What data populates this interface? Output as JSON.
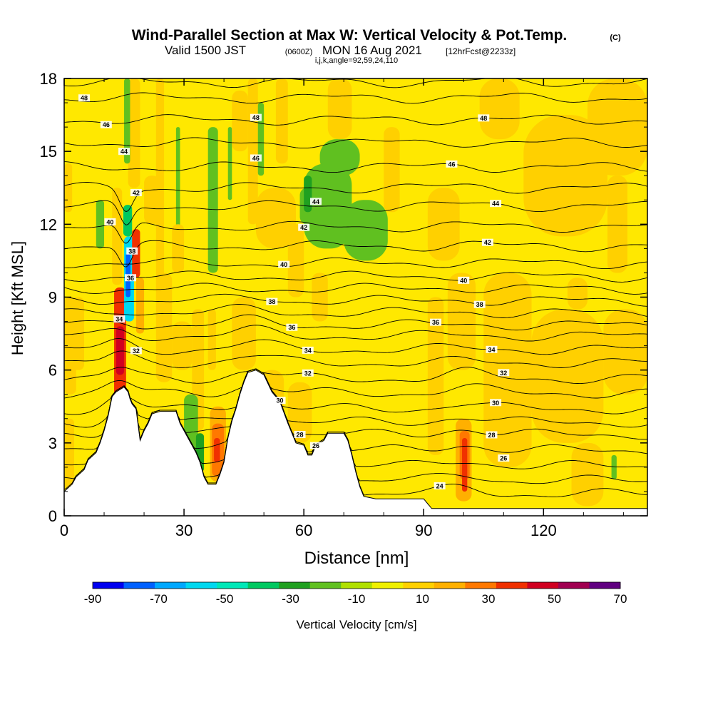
{
  "chart_data": {
    "type": "heatmap",
    "title": {
      "main": "Wind-Parallel Section at Max W: Vertical Velocity & Pot.Temp.",
      "copyright": "(C)",
      "line2_a": "Valid 1500 JST",
      "line2_b": "(0600Z)",
      "line2_c": "MON 16 Aug 2021",
      "line2_d": "[12hrFcst@2233z]",
      "line3": "i,j,k,angle=92,59,24,110"
    },
    "xlabel": "Distance [nm]",
    "ylabel": "Height [Kft MSL]",
    "xlim": [
      0,
      146
    ],
    "ylim": [
      0,
      18
    ],
    "x_ticks": [
      "0",
      "30",
      "60",
      "90",
      "120"
    ],
    "x_tick_values": [
      0,
      30,
      60,
      90,
      120
    ],
    "y_ticks": [
      "0",
      "3",
      "6",
      "9",
      "12",
      "15",
      "18"
    ],
    "y_tick_values": [
      0,
      3,
      6,
      9,
      12,
      15,
      18
    ],
    "colorbar": {
      "label": "Vertical Velocity [cm/s]",
      "tick_labels": [
        "-90",
        "-70",
        "-50",
        "-30",
        "-10",
        "10",
        "30",
        "50",
        "70"
      ],
      "tick_values": [
        -90,
        -70,
        -50,
        -30,
        -10,
        10,
        30,
        50,
        70
      ],
      "bins": [
        -90,
        -80,
        -70,
        -60,
        -50,
        -40,
        -30,
        -20,
        -10,
        0,
        10,
        20,
        30,
        40,
        50,
        60,
        70
      ],
      "colors": [
        "#0000f0",
        "#0060ff",
        "#00a8ff",
        "#00d8f0",
        "#00e8b8",
        "#00c860",
        "#20a020",
        "#60c020",
        "#b0e000",
        "#f0f000",
        "#ffd000",
        "#ffb000",
        "#ff7800",
        "#f03000",
        "#d00020",
        "#a00050",
        "#600080"
      ]
    },
    "background_color": "#ffe800",
    "terrain": [
      [
        0,
        1.0
      ],
      [
        2,
        1.3
      ],
      [
        3,
        1.6
      ],
      [
        5,
        1.9
      ],
      [
        6,
        2.3
      ],
      [
        8,
        2.6
      ],
      [
        9,
        3.0
      ],
      [
        10,
        3.5
      ],
      [
        11,
        4.1
      ],
      [
        12,
        4.9
      ],
      [
        13,
        5.1
      ],
      [
        14,
        5.2
      ],
      [
        15,
        5.3
      ],
      [
        16,
        5.1
      ],
      [
        16.5,
        4.8
      ],
      [
        17,
        4.6
      ],
      [
        18,
        4.4
      ],
      [
        19,
        3.1
      ],
      [
        20,
        3.5
      ],
      [
        21,
        3.8
      ],
      [
        22,
        4.2
      ],
      [
        24,
        4.3
      ],
      [
        26,
        4.3
      ],
      [
        28,
        4.3
      ],
      [
        29,
        3.8
      ],
      [
        30,
        3.5
      ],
      [
        31,
        3.2
      ],
      [
        32,
        2.9
      ],
      [
        33,
        2.6
      ],
      [
        34,
        2.2
      ],
      [
        35,
        1.6
      ],
      [
        36,
        1.3
      ],
      [
        38,
        1.3
      ],
      [
        39,
        1.7
      ],
      [
        40,
        2.2
      ],
      [
        41,
        3.2
      ],
      [
        42,
        3.9
      ],
      [
        43,
        4.4
      ],
      [
        44,
        5.0
      ],
      [
        45,
        5.5
      ],
      [
        46,
        5.9
      ],
      [
        48,
        6.0
      ],
      [
        50,
        5.8
      ],
      [
        52,
        5.1
      ],
      [
        54,
        4.7
      ],
      [
        56,
        3.8
      ],
      [
        57,
        3.4
      ],
      [
        58,
        3.0
      ],
      [
        60,
        2.9
      ],
      [
        61,
        2.5
      ],
      [
        62,
        2.5
      ],
      [
        63,
        2.9
      ],
      [
        64,
        3.0
      ],
      [
        65,
        3.1
      ],
      [
        66,
        3.4
      ],
      [
        68,
        3.4
      ],
      [
        70,
        3.4
      ],
      [
        71,
        3.1
      ],
      [
        72,
        2.5
      ],
      [
        73,
        1.8
      ],
      [
        74,
        1.2
      ],
      [
        75,
        0.8
      ],
      [
        78,
        0.7
      ],
      [
        82,
        0.7
      ],
      [
        86,
        0.7
      ],
      [
        89,
        0.7
      ],
      [
        90,
        0.7
      ],
      [
        91,
        0.5
      ],
      [
        92,
        0.3
      ],
      [
        146,
        0.3
      ]
    ],
    "wind_cells": [
      {
        "x0": 12.5,
        "x1": 15.5,
        "y0": 4.9,
        "y1": 9.4,
        "value": 45
      },
      {
        "x0": 13.0,
        "x1": 15.0,
        "y0": 5.8,
        "y1": 7.8,
        "value": 55
      },
      {
        "x0": 15.0,
        "x1": 17.5,
        "y0": 8.0,
        "y1": 11.5,
        "value": -60
      },
      {
        "x0": 15.4,
        "x1": 16.6,
        "y0": 9.0,
        "y1": 10.8,
        "value": -75
      },
      {
        "x0": 14.8,
        "x1": 17.0,
        "y0": 11.5,
        "y1": 12.8,
        "value": -35
      },
      {
        "x0": 17.0,
        "x1": 19.0,
        "y0": 9.8,
        "y1": 11.8,
        "value": 40
      },
      {
        "x0": 18.0,
        "x1": 20.0,
        "y0": 7.5,
        "y1": 9.8,
        "value": 25
      },
      {
        "x0": 12.0,
        "x1": 14.5,
        "y0": 9.5,
        "y1": 13.5,
        "value": 15
      },
      {
        "x0": 16.0,
        "x1": 19.0,
        "y0": 13.5,
        "y1": 18.0,
        "value": 18
      },
      {
        "x0": 15.0,
        "x1": 16.5,
        "y0": 14.5,
        "y1": 18.0,
        "value": -15
      },
      {
        "x0": 8.0,
        "x1": 10.0,
        "y0": 11.0,
        "y1": 13.0,
        "value": -12
      },
      {
        "x0": 23.0,
        "x1": 25.0,
        "y0": 8.0,
        "y1": 18.0,
        "value": 14
      },
      {
        "x0": 28.0,
        "x1": 29.0,
        "y0": 10.5,
        "y1": 16.0,
        "value": -14
      },
      {
        "x0": 27.0,
        "x1": 30.0,
        "y0": 10.0,
        "y1": 12.0,
        "value": 12
      },
      {
        "x0": 20.0,
        "x1": 24.0,
        "y0": 12.0,
        "y1": 14.0,
        "value": 12
      },
      {
        "x0": 36.0,
        "x1": 38.5,
        "y0": 10.0,
        "y1": 16.0,
        "value": -14
      },
      {
        "x0": 41.0,
        "x1": 42.0,
        "y0": 13.0,
        "y1": 16.0,
        "value": -12
      },
      {
        "x0": 46.0,
        "x1": 48.5,
        "y0": 12.0,
        "y1": 18.0,
        "value": 15
      },
      {
        "x0": 48.5,
        "x1": 50.0,
        "y0": 14.0,
        "y1": 17.0,
        "value": -14
      },
      {
        "x0": 42.0,
        "x1": 46.0,
        "y0": 15.0,
        "y1": 17.5,
        "value": 14
      },
      {
        "x0": 53.0,
        "x1": 56.0,
        "y0": 14.5,
        "y1": 18.0,
        "value": 14
      },
      {
        "x0": 48.0,
        "x1": 58.0,
        "y0": 11.0,
        "y1": 13.5,
        "value": 12
      },
      {
        "x0": 60.0,
        "x1": 72.0,
        "y0": 11.0,
        "y1": 14.5,
        "value": -12
      },
      {
        "x0": 59.0,
        "x1": 63.0,
        "y0": 12.0,
        "y1": 13.5,
        "value": -12
      },
      {
        "x0": 70.0,
        "x1": 81.0,
        "y0": 10.5,
        "y1": 13.0,
        "value": -12
      },
      {
        "x0": 64.0,
        "x1": 74.0,
        "y0": 14.0,
        "y1": 15.5,
        "value": -12
      },
      {
        "x0": 60.0,
        "x1": 62.0,
        "y0": 12.5,
        "y1": 14.0,
        "value": -28
      },
      {
        "x0": 80.0,
        "x1": 84.0,
        "y0": 12.5,
        "y1": 16.0,
        "value": 12
      },
      {
        "x0": 66.0,
        "x1": 72.0,
        "y0": 15.5,
        "y1": 18.0,
        "value": 12
      },
      {
        "x0": 104.0,
        "x1": 114.0,
        "y0": 15.5,
        "y1": 18.0,
        "value": 14
      },
      {
        "x0": 115.0,
        "x1": 136.0,
        "y0": 11.5,
        "y1": 16.5,
        "value": 14
      },
      {
        "x0": 131.0,
        "x1": 146.0,
        "y0": 14.0,
        "y1": 18.0,
        "value": 12
      },
      {
        "x0": 136.0,
        "x1": 141.0,
        "y0": 10.0,
        "y1": 14.0,
        "value": 12
      },
      {
        "x0": 91.0,
        "x1": 99.0,
        "y0": 10.5,
        "y1": 13.5,
        "value": 12
      },
      {
        "x0": 91.0,
        "x1": 95.0,
        "y0": 2.5,
        "y1": 9.0,
        "value": 12
      },
      {
        "x0": 96.0,
        "x1": 103.0,
        "y0": 6.0,
        "y1": 10.0,
        "value": 12
      },
      {
        "x0": 105.0,
        "x1": 117.0,
        "y0": 2.0,
        "y1": 10.0,
        "value": 12
      },
      {
        "x0": 117.0,
        "x1": 135.0,
        "y0": 3.0,
        "y1": 8.5,
        "value": 12
      },
      {
        "x0": 127.0,
        "x1": 135.0,
        "y0": 0.4,
        "y1": 3.0,
        "value": 12
      },
      {
        "x0": 135.0,
        "x1": 146.0,
        "y0": 5.0,
        "y1": 8.5,
        "value": 12
      },
      {
        "x0": 126.0,
        "x1": 131.0,
        "y0": 8.5,
        "y1": 9.8,
        "value": 12
      },
      {
        "x0": 98.0,
        "x1": 102.0,
        "y0": 0.6,
        "y1": 4.0,
        "value": 20
      },
      {
        "x0": 99.0,
        "x1": 101.5,
        "y0": 1.5,
        "y1": 3.5,
        "value": 32
      },
      {
        "x0": 99.6,
        "x1": 100.9,
        "y0": 1.0,
        "y1": 3.2,
        "value": 45
      },
      {
        "x0": 137.0,
        "x1": 138.3,
        "y0": 1.5,
        "y1": 2.5,
        "value": -14
      },
      {
        "x0": 32.0,
        "x1": 35.0,
        "y0": 3.5,
        "y1": 8.5,
        "value": 14
      },
      {
        "x0": 36.0,
        "x1": 38.0,
        "y0": 6.0,
        "y1": 8.5,
        "value": 18
      },
      {
        "x0": 36.5,
        "x1": 40.5,
        "y0": 1.4,
        "y1": 4.5,
        "value": 20
      },
      {
        "x0": 37.0,
        "x1": 40.0,
        "y0": 1.6,
        "y1": 3.8,
        "value": 32
      },
      {
        "x0": 37.5,
        "x1": 39.0,
        "y0": 2.2,
        "y1": 3.2,
        "value": 45
      },
      {
        "x0": 30.0,
        "x1": 33.5,
        "y0": 3.0,
        "y1": 5.0,
        "value": -14
      },
      {
        "x0": 31.5,
        "x1": 34.0,
        "y0": 1.5,
        "y1": 3.2,
        "value": -14
      },
      {
        "x0": 33.0,
        "x1": 35.0,
        "y0": 1.8,
        "y1": 3.4,
        "value": -25
      },
      {
        "x0": 0.0,
        "x1": 2.5,
        "y0": 1.0,
        "y1": 4.0,
        "value": 14
      },
      {
        "x0": 0.0,
        "x1": 3.0,
        "y0": 5.0,
        "y1": 9.0,
        "value": 14
      },
      {
        "x0": 2.0,
        "x1": 5.0,
        "y0": 6.0,
        "y1": 9.0,
        "value": 14
      },
      {
        "x0": 0.0,
        "x1": 2.0,
        "y0": 12.5,
        "y1": 14.5,
        "value": 12
      },
      {
        "x0": 23.0,
        "x1": 27.0,
        "y0": 5.5,
        "y1": 10.0,
        "value": 14
      },
      {
        "x0": 27.0,
        "x1": 32.0,
        "y0": 6.0,
        "y1": 8.0,
        "value": 14
      },
      {
        "x0": 42.0,
        "x1": 48.0,
        "y0": 6.0,
        "y1": 9.0,
        "value": 14
      },
      {
        "x0": 49.0,
        "x1": 55.0,
        "y0": 3.0,
        "y1": 6.0,
        "value": 14
      },
      {
        "x0": 56.0,
        "x1": 62.0,
        "y0": 3.0,
        "y1": 5.5,
        "value": 14
      },
      {
        "x0": 62.0,
        "x1": 66.0,
        "y0": 8.0,
        "y1": 10.0,
        "value": 14
      },
      {
        "x0": 56.0,
        "x1": 60.0,
        "y0": 9.0,
        "y1": 12.0,
        "value": 14
      }
    ],
    "isentropes": [
      {
        "value": 24,
        "label": "24",
        "base": 0.9,
        "label_x": 94.0,
        "label_dy": 0
      },
      {
        "value": 25,
        "label": "",
        "base": 1.45,
        "label_x": null,
        "label_dy": 0
      },
      {
        "value": 26,
        "label": "26",
        "base": 2.05,
        "label_x": 63.0,
        "label_dy": -0.06
      },
      {
        "value": 26,
        "label": "26",
        "base": 2.05,
        "label_x": 110.0,
        "label_dy": 0.38
      },
      {
        "value": 27,
        "label": "",
        "base": 2.7,
        "label_x": null,
        "label_dy": 0
      },
      {
        "value": 28,
        "label": "28",
        "base": 3.35,
        "label_x": 59.0,
        "label_dy": 0
      },
      {
        "value": 28,
        "label": "28",
        "base": 3.35,
        "label_x": 107.0,
        "label_dy": 0
      },
      {
        "value": 29,
        "label": "",
        "base": 3.85,
        "label_x": null,
        "label_dy": 0
      },
      {
        "value": 30,
        "label": "30",
        "base": 4.4,
        "label_x": 54.0,
        "label_dy": 0
      },
      {
        "value": 30,
        "label": "30",
        "base": 4.4,
        "label_x": 108.0,
        "label_dy": 0
      },
      {
        "value": 31,
        "label": "",
        "base": 5.05,
        "label_x": null,
        "label_dy": 0
      },
      {
        "value": 32,
        "label": "32",
        "base": 5.65,
        "label_x": 61.0,
        "label_dy": 0
      },
      {
        "value": 32,
        "label": "32",
        "base": 5.65,
        "label_x": 110.0,
        "label_dy": 0.2
      },
      {
        "value": 33,
        "label": "",
        "base": 6.3,
        "label_x": null,
        "label_dy": 0
      },
      {
        "value": 34,
        "label": "34",
        "base": 6.85,
        "label_x": 61.0,
        "label_dy": 0
      },
      {
        "value": 34,
        "label": "34",
        "base": 6.85,
        "label_x": 107.0,
        "label_dy": 0
      },
      {
        "value": 35,
        "label": "",
        "base": 7.4,
        "label_x": null,
        "label_dy": 0
      },
      {
        "value": 36,
        "label": "36",
        "base": 7.85,
        "label_x": 57.0,
        "label_dy": 0
      },
      {
        "value": 36,
        "label": "36",
        "base": 7.85,
        "label_x": 93.0,
        "label_dy": 0.05
      },
      {
        "value": 37,
        "label": "",
        "base": 8.35,
        "label_x": null,
        "label_dy": 0
      },
      {
        "value": 38,
        "label": "38",
        "base": 8.85,
        "label_x": 52.0,
        "label_dy": 0
      },
      {
        "value": 38,
        "label": "38",
        "base": 8.85,
        "label_x": 104.0,
        "label_dy": 0
      },
      {
        "value": 39,
        "label": "",
        "base": 9.35,
        "label_x": null,
        "label_dy": 0
      },
      {
        "value": 40,
        "label": "40",
        "base": 9.85,
        "label_x": 55.0,
        "label_dy": 0.6
      },
      {
        "value": 40,
        "label": "40",
        "base": 9.85,
        "label_x": 100.0,
        "label_dy": 0
      },
      {
        "value": 41,
        "label": "",
        "base": 10.4,
        "label_x": null,
        "label_dy": 0
      },
      {
        "value": 42,
        "label": "42",
        "base": 11.1,
        "label_x": 60.0,
        "label_dy": 0.6
      },
      {
        "value": 42,
        "label": "42",
        "base": 11.1,
        "label_x": 106.0,
        "label_dy": 0
      },
      {
        "value": 43,
        "label": "",
        "base": 11.9,
        "label_x": null,
        "label_dy": 0
      },
      {
        "value": 44,
        "label": "44",
        "base": 12.75,
        "label_x": 63.0,
        "label_dy": 0.2
      },
      {
        "value": 44,
        "label": "44",
        "base": 12.75,
        "label_x": 108.0,
        "label_dy": 0
      },
      {
        "value": 45,
        "label": "",
        "base": 13.5,
        "label_x": null,
        "label_dy": 0
      },
      {
        "value": 46,
        "label": "46",
        "base": 14.35,
        "label_x": 48.0,
        "label_dy": 0.35
      },
      {
        "value": 46,
        "label": "46",
        "base": 14.35,
        "label_x": 97.0,
        "label_dy": 0
      },
      {
        "value": 47,
        "label": "",
        "base": 15.35,
        "label_x": null,
        "label_dy": 0
      },
      {
        "value": 48,
        "label": "48",
        "base": 16.3,
        "label_x": 48.0,
        "label_dy": 0.2
      },
      {
        "value": 48,
        "label": "48",
        "base": 16.3,
        "label_x": 105.0,
        "label_dy": 0
      },
      {
        "value": 49,
        "label": "",
        "base": 17.2,
        "label_x": null,
        "label_dy": 0
      },
      {
        "value": 50,
        "label": "",
        "base": 17.85,
        "label_x": null,
        "label_dy": 0
      }
    ],
    "isentrope_labels_extra": [
      {
        "label": "48",
        "x": 5.0,
        "y": 17.2
      },
      {
        "label": "46",
        "x": 10.5,
        "y": 16.1
      },
      {
        "label": "44",
        "x": 15.0,
        "y": 15.0
      },
      {
        "label": "42",
        "x": 18.0,
        "y": 13.3
      },
      {
        "label": "40",
        "x": 11.5,
        "y": 12.1
      },
      {
        "label": "38",
        "x": 17.0,
        "y": 10.9
      },
      {
        "label": "36",
        "x": 16.6,
        "y": 9.8
      },
      {
        "label": "34",
        "x": 13.8,
        "y": 8.1
      },
      {
        "label": "32",
        "x": 18.0,
        "y": 6.8
      }
    ]
  }
}
